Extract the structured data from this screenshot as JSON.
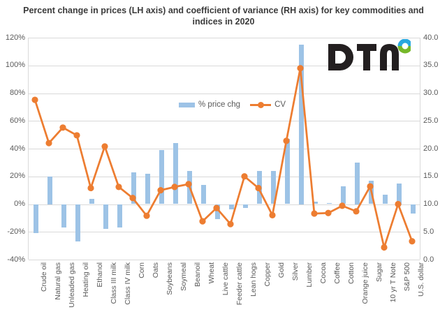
{
  "title": "Percent change in prices (LH axis) and coefficient of variance (RH axis) for key commodities and indices in 2020",
  "legend": {
    "bar_label": "% price chg",
    "line_label": "CV"
  },
  "logo": {
    "brand": "DTN"
  },
  "colors": {
    "bar": "#9dc3e6",
    "line": "#ed7d31",
    "grid": "#d9d9d9",
    "axis_text": "#595959",
    "title_text": "#3b3b3b",
    "logo_dark": "#231f20",
    "logo_ring_blue": "#29a8df",
    "logo_ring_green": "#76b82a"
  },
  "chart_data": {
    "type": "bar",
    "subtype": "bar-line combo, dual axis",
    "title": "Percent change in prices (LH axis) and coefficient of variance (RH axis) for key commodities and indices in 2020",
    "categories": [
      "Crude oil",
      "Natural gas",
      "Unleaded gas",
      "Heating oil",
      "Ethanol",
      "Class III milk",
      "Class IV milk",
      "Corn",
      "Oats",
      "Soybeans",
      "Soymeal",
      "Beanoil",
      "Wheat",
      "Live cattle",
      "Feeder cattle",
      "Lean hogs",
      "Copper",
      "Gold",
      "Silver",
      "Lumber",
      "Cocoa",
      "Coffee",
      "Cotton",
      "Orange juice",
      "Sugar",
      "10 yr T Note",
      "S&P 500",
      "U.S. dollar"
    ],
    "series": [
      {
        "name": "% price chg",
        "type": "bar",
        "axis": "left",
        "unit": "%",
        "values": [
          -21,
          20,
          -17,
          -27,
          4,
          -18,
          -17,
          23,
          22,
          39,
          44,
          24,
          14,
          -11,
          -4,
          -3,
          24,
          24,
          47,
          115,
          2,
          1,
          13,
          30,
          17,
          7,
          15,
          -7
        ]
      },
      {
        "name": "CV",
        "type": "line",
        "axis": "right",
        "unit": "",
        "values": [
          28.8,
          21.0,
          23.8,
          22.4,
          12.9,
          20.4,
          13.1,
          11.1,
          7.9,
          12.5,
          13.1,
          13.6,
          6.9,
          9.3,
          6.4,
          15.0,
          12.9,
          8.0,
          21.4,
          34.5,
          8.3,
          8.4,
          9.7,
          8.7,
          13.2,
          2.2,
          10.0,
          3.3
        ]
      }
    ],
    "left_axis": {
      "min": -40,
      "max": 120,
      "step": 20,
      "ticks": [
        "120%",
        "100%",
        "80%",
        "60%",
        "40%",
        "20%",
        "0%",
        "-20%",
        "-40%"
      ]
    },
    "right_axis": {
      "min": 0,
      "max": 40,
      "step": 5,
      "ticks": [
        "40.0",
        "35.0",
        "30.0",
        "25.0",
        "20.0",
        "15.0",
        "10.0",
        "5.0",
        "0.0"
      ]
    },
    "grid": "horizontal only",
    "legend_position": "inside top-center"
  }
}
